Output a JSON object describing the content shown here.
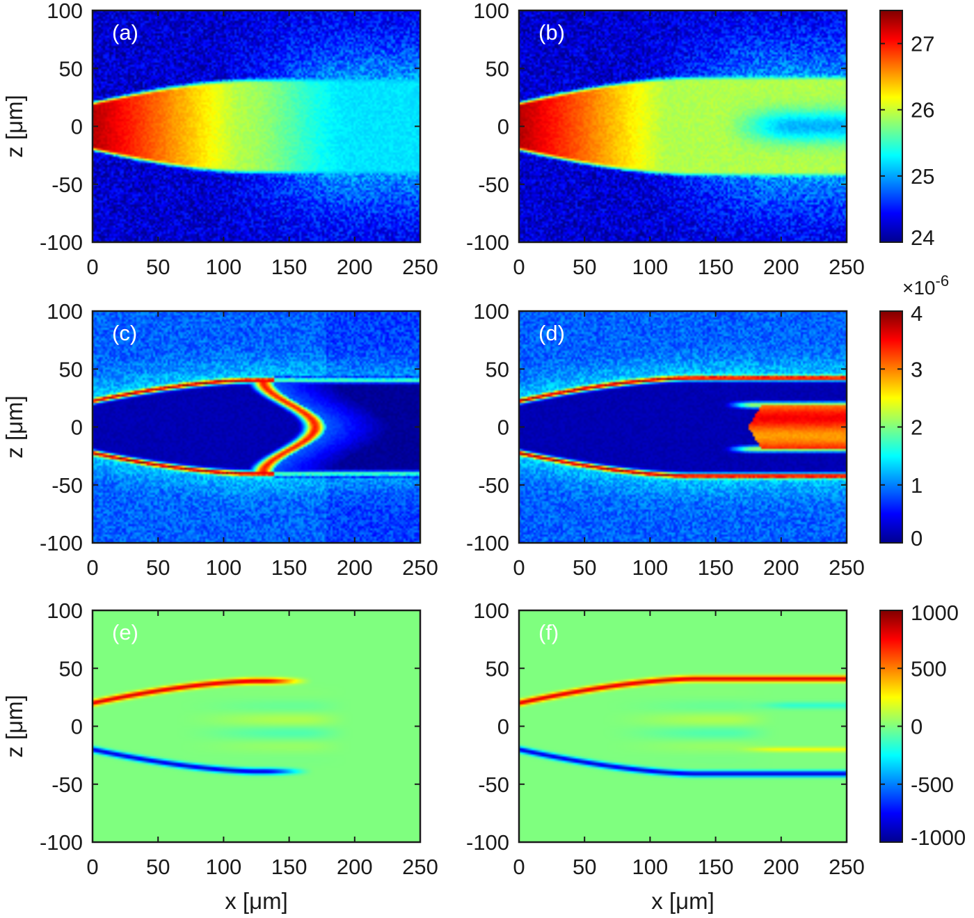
{
  "chart_data": [
    {
      "type": "heatmap",
      "panel_label": "(a)",
      "field": "ring",
      "xlim": [
        0,
        250
      ],
      "ylim": [
        -100,
        100
      ],
      "xticks": [
        "0",
        "50",
        "100",
        "150",
        "200",
        "250"
      ],
      "yticks": [
        "100",
        "50",
        "0",
        "-50",
        "-100"
      ],
      "xlabel": "",
      "ylabel": "z [μm]",
      "colorbar_group": 0,
      "params": {
        "w0": 20,
        "wmax": 40,
        "xs": 120,
        "xend": 180,
        "tip": 0
      }
    },
    {
      "type": "heatmap",
      "panel_label": "(b)",
      "field": "ring",
      "xlim": [
        0,
        250
      ],
      "ylim": [
        -100,
        100
      ],
      "xticks": [
        "0",
        "50",
        "100",
        "150",
        "200",
        "250"
      ],
      "yticks": [
        "100",
        "50",
        "0",
        "-50",
        "-100"
      ],
      "xlabel": "",
      "ylabel": "",
      "colorbar_group": 0,
      "params": {
        "w0": 20,
        "wmax": 42,
        "xs": 130,
        "xend": 260,
        "tip": 0
      }
    },
    {
      "type": "heatmap",
      "panel_label": "(c)",
      "field": "density",
      "xlim": [
        0,
        250
      ],
      "ylim": [
        -100,
        100
      ],
      "xticks": [
        "0",
        "50",
        "100",
        "150",
        "200",
        "250"
      ],
      "yticks": [
        "100",
        "50",
        "0",
        "-50",
        "-100"
      ],
      "xlabel": "",
      "ylabel": "z [μm]",
      "colorbar_group": 1,
      "params": {
        "w0": 22,
        "wmax": 40,
        "xs": 120,
        "xend": 178,
        "tip": 1
      }
    },
    {
      "type": "heatmap",
      "panel_label": "(d)",
      "field": "density",
      "xlim": [
        0,
        250
      ],
      "ylim": [
        -100,
        100
      ],
      "xticks": [
        "0",
        "50",
        "100",
        "150",
        "200",
        "250"
      ],
      "yticks": [
        "100",
        "50",
        "0",
        "-50",
        "-100"
      ],
      "xlabel": "",
      "ylabel": "",
      "colorbar_group": 1,
      "params": {
        "w0": 22,
        "wmax": 42,
        "xs": 130,
        "xend": 260,
        "tip": 2
      }
    },
    {
      "type": "heatmap",
      "panel_label": "(e)",
      "field": "difference",
      "xlim": [
        0,
        250
      ],
      "ylim": [
        -100,
        100
      ],
      "xticks": [
        "0",
        "50",
        "100",
        "150",
        "200",
        "250"
      ],
      "yticks": [
        "100",
        "50",
        "0",
        "-50",
        "-100"
      ],
      "xlabel": "x [μm]",
      "ylabel": "z [μm]",
      "colorbar_group": 2,
      "params": {
        "w0": 20,
        "wmax": 39,
        "xs": 125,
        "xend": 140,
        "tip": 0
      }
    },
    {
      "type": "heatmap",
      "panel_label": "(f)",
      "field": "difference",
      "xlim": [
        0,
        250
      ],
      "ylim": [
        -100,
        100
      ],
      "xticks": [
        "0",
        "50",
        "100",
        "150",
        "200",
        "250"
      ],
      "yticks": [
        "100",
        "50",
        "0",
        "-50",
        "-100"
      ],
      "xlabel": "x [μm]",
      "ylabel": "",
      "colorbar_group": 2,
      "params": {
        "w0": 20,
        "wmax": 41,
        "xs": 135,
        "xend": 260,
        "tip": 0
      }
    }
  ],
  "colorbars": [
    {
      "colormap": "jet",
      "range": [
        24,
        27.5
      ],
      "ticks": [
        "27",
        "26",
        "25",
        "24"
      ],
      "tick_values": [
        27,
        26,
        25,
        24
      ],
      "multiplier": ""
    },
    {
      "colormap": "jet",
      "range": [
        0,
        4
      ],
      "ticks": [
        "4",
        "3",
        "2",
        "1",
        "0"
      ],
      "tick_values": [
        4,
        3,
        2,
        1,
        0
      ],
      "multiplier": "×10-6"
    },
    {
      "colormap": "jet",
      "range": [
        -1000,
        1000
      ],
      "ticks": [
        "1000",
        "500",
        "0",
        "-500",
        "-1000"
      ],
      "tick_values": [
        1000,
        500,
        0,
        -500,
        -1000
      ],
      "multiplier": ""
    }
  ],
  "colors": {
    "jet_low": "#00008f",
    "jet_mid": "#80ff80",
    "jet_high": "#800000",
    "axes": "#1a1a1a",
    "background": "#ffffff"
  }
}
